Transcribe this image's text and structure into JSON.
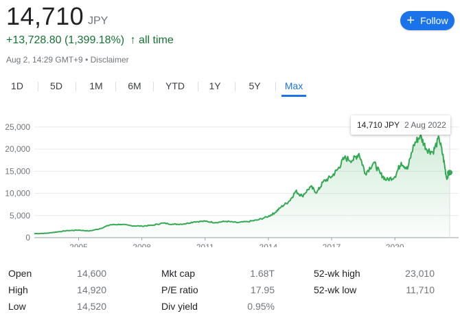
{
  "header": {
    "price": "14,710",
    "currency": "JPY",
    "change": "+13,728.80 (1,399.18%)",
    "change_arrow": "↑",
    "period": "all time",
    "timestamp": "Aug 2, 14:29 GMT+9",
    "separator": "•",
    "disclaimer": "Disclaimer",
    "follow_label": "Follow"
  },
  "tabs": [
    "1D",
    "5D",
    "1M",
    "6M",
    "YTD",
    "1Y",
    "5Y",
    "Max"
  ],
  "active_tab": "Max",
  "colors": {
    "accent": "#1a73e8",
    "positive": "#137333",
    "line": "#34a853"
  },
  "tooltip": {
    "value": "14,710 JPY",
    "date": "2 Aug 2022"
  },
  "chart_data": {
    "type": "area",
    "ylim": [
      0,
      27000
    ],
    "xlim": [
      2002.9,
      2022.6
    ],
    "yticks": [
      0,
      5000,
      10000,
      15000,
      20000,
      25000
    ],
    "ytick_labels": [
      "0",
      "5,000",
      "10,000",
      "15,000",
      "20,000",
      "25,000"
    ],
    "xticks": [
      2005,
      2008,
      2011,
      2014,
      2017,
      2020
    ],
    "xtick_labels": [
      "2005",
      "2008",
      "2011",
      "2014",
      "2017",
      "2020"
    ],
    "grid": true,
    "x": [
      2002.9,
      2003.5,
      2004.0,
      2004.5,
      2005.0,
      2005.5,
      2006.0,
      2006.5,
      2007.0,
      2007.5,
      2008.0,
      2008.5,
      2009.0,
      2009.5,
      2010.0,
      2010.5,
      2011.0,
      2011.5,
      2012.0,
      2012.5,
      2013.0,
      2013.5,
      2014.0,
      2014.3,
      2014.6,
      2015.0,
      2015.3,
      2015.6,
      2016.0,
      2016.3,
      2016.6,
      2017.0,
      2017.3,
      2017.6,
      2018.0,
      2018.3,
      2018.6,
      2019.0,
      2019.3,
      2019.6,
      2020.0,
      2020.3,
      2020.6,
      2020.9,
      2021.2,
      2021.5,
      2021.8,
      2022.1,
      2022.3,
      2022.45,
      2022.6
    ],
    "y": [
      900,
      1000,
      1300,
      1600,
      1700,
      1500,
      2000,
      2900,
      3000,
      2700,
      2600,
      2800,
      3300,
      3000,
      3100,
      3600,
      3700,
      3400,
      3700,
      3400,
      3600,
      4000,
      4800,
      5600,
      6900,
      8300,
      10500,
      9400,
      11500,
      10200,
      12600,
      13800,
      15500,
      18000,
      17500,
      19000,
      14500,
      17000,
      14500,
      13000,
      13800,
      17000,
      15500,
      21000,
      23010,
      20000,
      19300,
      22500,
      18000,
      13500,
      14710
    ]
  },
  "stats": {
    "col1": [
      {
        "label": "Open",
        "value": "14,600"
      },
      {
        "label": "High",
        "value": "14,920"
      },
      {
        "label": "Low",
        "value": "14,520"
      }
    ],
    "col2": [
      {
        "label": "Mkt cap",
        "value": "1.68T"
      },
      {
        "label": "P/E ratio",
        "value": "17.95"
      },
      {
        "label": "Div yield",
        "value": "0.95%"
      }
    ],
    "col3": [
      {
        "label": "52-wk high",
        "value": "23,010"
      },
      {
        "label": "52-wk low",
        "value": "11,710"
      }
    ]
  }
}
